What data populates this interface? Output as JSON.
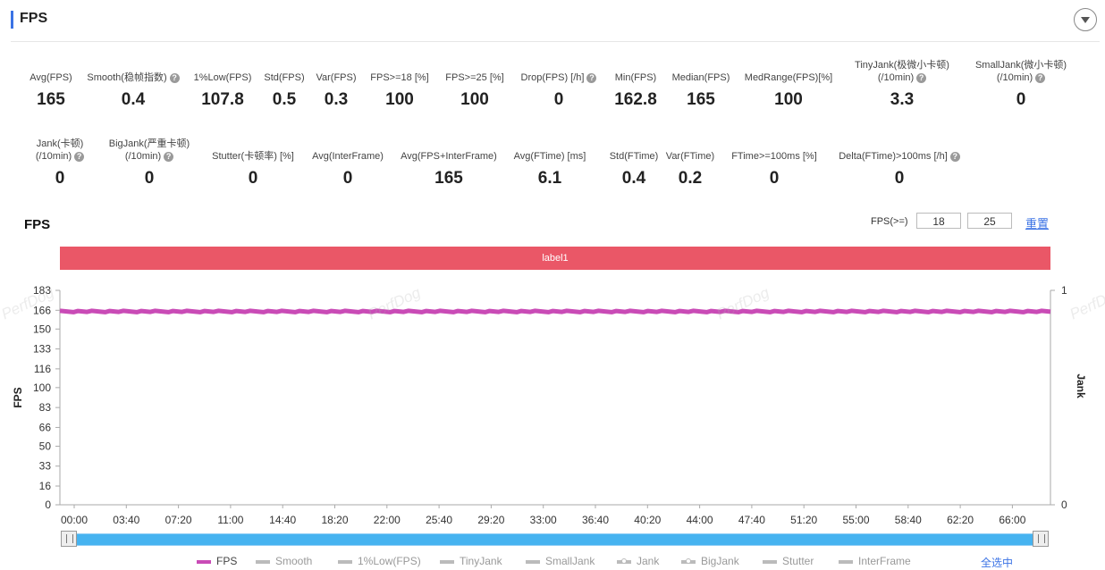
{
  "header": {
    "title": "FPS"
  },
  "stats_row1": [
    {
      "label": "Avg(FPS)",
      "value": "165",
      "help": false
    },
    {
      "label": "Smooth(稳帧指数)",
      "value": "0.4",
      "help": true
    },
    {
      "label": "1%Low(FPS)",
      "value": "107.8",
      "help": false
    },
    {
      "label": "Std(FPS)",
      "value": "0.5",
      "help": false
    },
    {
      "label": "Var(FPS)",
      "value": "0.3",
      "help": false
    },
    {
      "label": "FPS>=18 [%]",
      "value": "100",
      "help": false
    },
    {
      "label": "FPS>=25 [%]",
      "value": "100",
      "help": false
    },
    {
      "label": "Drop(FPS) [/h]",
      "value": "0",
      "help": true
    },
    {
      "label": "Min(FPS)",
      "value": "162.8",
      "help": false
    },
    {
      "label": "Median(FPS)",
      "value": "165",
      "help": false
    },
    {
      "label": "MedRange(FPS)[%]",
      "value": "100",
      "help": false
    },
    {
      "label": "TinyJank(极微小卡顿)",
      "label2": "(/10min)",
      "value": "3.3",
      "help": true
    },
    {
      "label": "SmallJank(微小卡顿)",
      "label2": "(/10min)",
      "value": "0",
      "help": true
    }
  ],
  "stats_row2": [
    {
      "label": "Jank(卡顿)",
      "label2": "(/10min)",
      "value": "0",
      "help": true
    },
    {
      "label": "BigJank(严重卡顿)",
      "label2": "(/10min)",
      "value": "0",
      "help": true
    },
    {
      "label": "Stutter(卡顿率) [%]",
      "value": "0",
      "help": false
    },
    {
      "label": "Avg(InterFrame)",
      "value": "0",
      "help": false
    },
    {
      "label": "Avg(FPS+InterFrame)",
      "value": "165",
      "help": false
    },
    {
      "label": "Avg(FTime) [ms]",
      "value": "6.1",
      "help": false
    },
    {
      "label": "Std(FTime)",
      "value": "0.4",
      "help": false
    },
    {
      "label": "Var(FTime)",
      "value": "0.2",
      "help": false
    },
    {
      "label": "FTime>=100ms [%]",
      "value": "0",
      "help": false
    },
    {
      "label": "Delta(FTime)>100ms [/h]",
      "value": "0",
      "help": true
    }
  ],
  "chart_controls": {
    "title": "FPS",
    "threshold_label": "FPS(>=)",
    "threshold1": "18",
    "threshold2": "25",
    "reset_label": "重置",
    "label_bar": "label1",
    "select_all": "全选中"
  },
  "watermark": "PerfDog",
  "chart_data": {
    "type": "line",
    "x_tick_labels": [
      "00:00",
      "03:40",
      "07:20",
      "11:00",
      "14:40",
      "18:20",
      "22:00",
      "25:40",
      "29:20",
      "33:00",
      "36:40",
      "40:20",
      "44:00",
      "47:40",
      "51:20",
      "55:00",
      "58:40",
      "62:20",
      "66:00"
    ],
    "ylabel": "FPS",
    "y2label": "Jank",
    "ylim": [
      0,
      183
    ],
    "y_ticks": [
      0,
      16,
      33,
      50,
      66,
      83,
      100,
      116,
      133,
      150,
      166,
      183
    ],
    "y2_ticks": [
      0,
      1
    ],
    "grid": false,
    "series": [
      {
        "name": "FPS",
        "color": "#c94bb6",
        "values": [
          165,
          165,
          165,
          165,
          165,
          165,
          165,
          165,
          165,
          165,
          165,
          165,
          165,
          165,
          165,
          165,
          165,
          165,
          165,
          165
        ]
      }
    ],
    "legend": [
      "FPS",
      "Smooth",
      "1%Low(FPS)",
      "TinyJank",
      "SmallJank",
      "Jank",
      "BigJank",
      "Stutter",
      "InterFrame"
    ],
    "legend_position": "bottom"
  }
}
